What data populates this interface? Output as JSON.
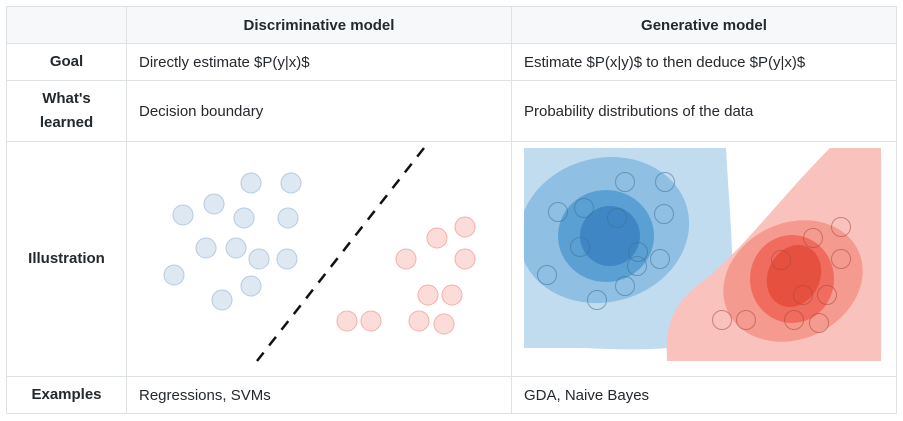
{
  "table": {
    "headers": [
      "",
      "Discriminative model",
      "Generative model"
    ],
    "rows": {
      "goal": {
        "label": "Goal",
        "discriminative": "Directly estimate $P(y|x)$",
        "generative": "Estimate $P(x|y)$ to then deduce $P(y|x)$"
      },
      "learned": {
        "label_line1": "What's",
        "label_line2": "learned",
        "discriminative": "Decision boundary",
        "generative": "Probability distributions of the data"
      },
      "illustration": {
        "label": "Illustration"
      },
      "examples": {
        "label": "Examples",
        "discriminative": "Regressions, SVMs",
        "generative": "GDA, Naive Bayes"
      }
    }
  },
  "colors": {
    "blue_point": "#dde8f3",
    "blue_point_stroke": "#b5cbe2",
    "red_point": "#fbdcd8",
    "red_point_stroke": "#f0b1aa",
    "blue_level_1": "#c2dcef",
    "blue_level_2": "#8fbfe2",
    "blue_level_3": "#5aa0d3",
    "blue_level_4": "#3e87c4",
    "red_level_1": "#f9c2bc",
    "red_level_2": "#f59a8f",
    "red_level_3": "#ef6c5e",
    "red_level_4": "#e6503f",
    "boundary": "#111111"
  }
}
